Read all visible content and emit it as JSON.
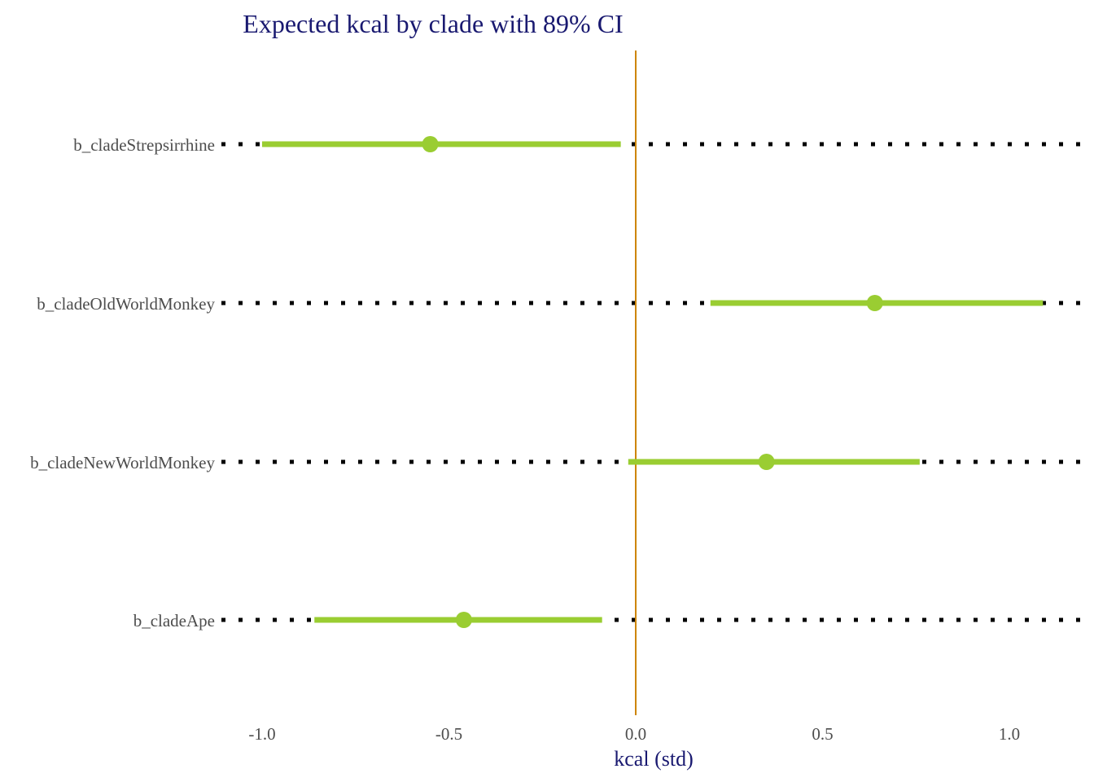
{
  "chart_data": {
    "type": "scatter",
    "subtype": "interval-plot",
    "title": "Expected kcal by clade with 89% CI",
    "xlabel": "kcal (std)",
    "ylabel": "",
    "xlim": [
      -1.0,
      1.2
    ],
    "xticks": [
      -1.0,
      -0.5,
      0.0,
      0.5,
      1.0
    ],
    "xtick_labels": [
      "-1.0",
      "-0.5",
      "0.0",
      "0.5",
      "1.0"
    ],
    "reference_line_x": 0.0,
    "categories": [
      "b_cladeStrepsirrhine",
      "b_cladeOldWorldMonkey",
      "b_cladeNewWorldMonkey",
      "b_cladeApe"
    ],
    "estimates": [
      -0.55,
      0.64,
      0.35,
      -0.46
    ],
    "lower": [
      -1.0,
      0.2,
      -0.02,
      -0.86
    ],
    "upper": [
      -0.04,
      1.09,
      0.76,
      -0.09
    ],
    "grid": "dotted horizontal lines at each category",
    "colors": {
      "interval": "#9acd32",
      "point": "#9acd32",
      "reference_line": "#cd8500",
      "gridline": "#000000",
      "title": "#191970",
      "tick_text": "#4d4d4d"
    }
  }
}
